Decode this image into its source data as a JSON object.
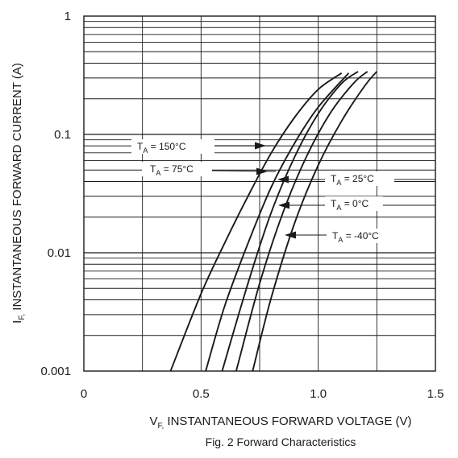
{
  "chart_data": {
    "type": "line",
    "title": "",
    "caption": "Fig. 2 Forward Characteristics",
    "xlabel_main": "V",
    "xlabel_sub": "F,",
    "xlabel_rest": " INSTANTANEOUS FORWARD VOLTAGE (V)",
    "ylabel_main": "I",
    "ylabel_sub": "F,",
    "ylabel_rest": " INSTANTANEOUS FORWARD CURRENT (A)",
    "xlim": [
      0,
      1.5
    ],
    "ylim": [
      0.001,
      1
    ],
    "yscale": "log",
    "grid": true,
    "x_ticks": [
      "0",
      "0.5",
      "1.0",
      "1.5"
    ],
    "y_ticks": [
      "0.001",
      "0.01",
      "0.1",
      "1"
    ],
    "series": [
      {
        "name_prefix": "T",
        "name_sub": "A",
        "name_suffix": " = 150°C",
        "x": [
          0.37,
          0.5,
          0.6,
          0.7,
          0.8,
          0.9,
          1.0,
          1.1
        ],
        "y": [
          0.001,
          0.0045,
          0.012,
          0.03,
          0.07,
          0.14,
          0.24,
          0.33
        ]
      },
      {
        "name_prefix": "T",
        "name_sub": "A",
        "name_suffix": " = 75°C",
        "x": [
          0.52,
          0.6,
          0.7,
          0.8,
          0.9,
          1.0,
          1.13
        ],
        "y": [
          0.001,
          0.0035,
          0.012,
          0.036,
          0.085,
          0.17,
          0.33
        ]
      },
      {
        "name_prefix": "T",
        "name_sub": "A",
        "name_suffix": " = 25°C",
        "x": [
          0.59,
          0.7,
          0.8,
          0.9,
          1.0,
          1.1,
          1.17
        ],
        "y": [
          0.001,
          0.0055,
          0.022,
          0.065,
          0.15,
          0.27,
          0.34
        ]
      },
      {
        "name_prefix": "T",
        "name_sub": "A",
        "name_suffix": " = 0°C",
        "x": [
          0.65,
          0.75,
          0.85,
          0.95,
          1.05,
          1.15,
          1.21
        ],
        "y": [
          0.001,
          0.0055,
          0.022,
          0.065,
          0.15,
          0.27,
          0.34
        ]
      },
      {
        "name_prefix": "T",
        "name_sub": "A",
        "name_suffix": " = -40°C",
        "x": [
          0.72,
          0.8,
          0.9,
          1.0,
          1.1,
          1.2,
          1.25
        ],
        "y": [
          0.001,
          0.0042,
          0.018,
          0.055,
          0.13,
          0.26,
          0.34
        ]
      }
    ]
  }
}
